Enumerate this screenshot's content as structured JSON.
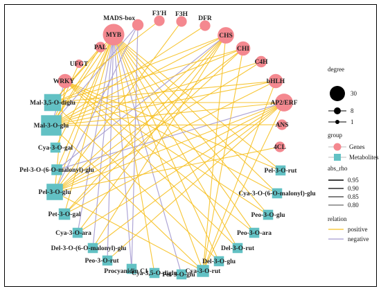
{
  "colors": {
    "gene": "#f4888f",
    "metabolite": "#62c1c4",
    "positive": "#f6c020",
    "negative": "#a59bd0"
  },
  "genes": [
    {
      "id": "MYB",
      "label": "MYB",
      "degree": 30
    },
    {
      "id": "MADS",
      "label": "MADS-box",
      "degree": 4
    },
    {
      "id": "F3pH",
      "label": "F3'H",
      "degree": 3
    },
    {
      "id": "F3H",
      "label": "F3H",
      "degree": 3
    },
    {
      "id": "DFR",
      "label": "DFR",
      "degree": 3
    },
    {
      "id": "CHS",
      "label": "CHS",
      "degree": 14
    },
    {
      "id": "CHI",
      "label": "CHI",
      "degree": 9
    },
    {
      "id": "C4H",
      "label": "C4H",
      "degree": 4
    },
    {
      "id": "bHLH",
      "label": "bHLH",
      "degree": 9
    },
    {
      "id": "AP2",
      "label": "AP2/ERF",
      "degree": 18
    },
    {
      "id": "ANS",
      "label": "ANS",
      "degree": 3
    },
    {
      "id": "4CL",
      "label": "4CL",
      "degree": 3
    },
    {
      "id": "PAL",
      "label": "PAL",
      "degree": 3
    },
    {
      "id": "UFGT",
      "label": "UFGT",
      "degree": 1
    },
    {
      "id": "WRKY",
      "label": "WRKY",
      "degree": 9
    }
  ],
  "metabolites": [
    {
      "id": "Mal35",
      "label": "Mal-3,5-O-diglu",
      "degree": 18
    },
    {
      "id": "Mal3glu",
      "label": "Mal-3-O-glu",
      "degree": 30
    },
    {
      "id": "Cya3gal",
      "label": "Cya-3-O-gal",
      "degree": 3
    },
    {
      "id": "Pel3mal",
      "label": "Pel-3-O-(6-O-malonyl)-glu",
      "degree": 4
    },
    {
      "id": "Pel3glu",
      "label": "Pel-3-O-glu",
      "degree": 16
    },
    {
      "id": "Pet3gal",
      "label": "Pet-3-O-gal",
      "degree": 5
    },
    {
      "id": "Cya3ara",
      "label": "Cya-3-O-ara",
      "degree": 3
    },
    {
      "id": "Del3mal",
      "label": "Del-3-O-(6-O-malonyl)-glu",
      "degree": 3
    },
    {
      "id": "Peo3rut",
      "label": "Peo-3-O-rut",
      "degree": 3
    },
    {
      "id": "ProcC1",
      "label": "Procyanidin C1",
      "degree": 3
    },
    {
      "id": "Cya35",
      "label": "Cya-3,5-O-diglu",
      "degree": 3
    },
    {
      "id": "Pet3glu",
      "label": "Pet-3-O-glu",
      "degree": 3
    },
    {
      "id": "Cya3rut",
      "label": "Cya-3-O-rut",
      "degree": 6
    },
    {
      "id": "Del3glu",
      "label": "Del-3-O-glu",
      "degree": 3
    },
    {
      "id": "Del3rut",
      "label": "Del-3-O-rut",
      "degree": 3
    },
    {
      "id": "Peo3ara",
      "label": "Peo-3-O-ara",
      "degree": 3
    },
    {
      "id": "Peo3glu",
      "label": "Peo-3-O-glu",
      "degree": 3
    },
    {
      "id": "Cya3mal",
      "label": "Cya-3-O-(6-O-malonyl)-glu",
      "degree": 3
    },
    {
      "id": "Pel3rut",
      "label": "Pel-3-O-rut",
      "degree": 3
    }
  ],
  "edges": [
    [
      "MYB",
      "Mal35",
      "positive"
    ],
    [
      "MYB",
      "Mal3glu",
      "positive"
    ],
    [
      "MYB",
      "Pel3glu",
      "positive"
    ],
    [
      "MYB",
      "Pet3gal",
      "positive"
    ],
    [
      "MYB",
      "Cya3rut",
      "positive"
    ],
    [
      "MYB",
      "Del3glu",
      "positive"
    ],
    [
      "MYB",
      "Del3rut",
      "positive"
    ],
    [
      "MYB",
      "Peo3ara",
      "positive"
    ],
    [
      "MYB",
      "Peo3glu",
      "positive"
    ],
    [
      "MYB",
      "Cya3mal",
      "positive"
    ],
    [
      "MYB",
      "Pel3rut",
      "positive"
    ],
    [
      "MYB",
      "Cya3ara",
      "negative"
    ],
    [
      "MYB",
      "Del3mal",
      "negative"
    ],
    [
      "MYB",
      "Peo3rut",
      "negative"
    ],
    [
      "MYB",
      "ProcC1",
      "negative"
    ],
    [
      "MYB",
      "Cya35",
      "positive"
    ],
    [
      "MYB",
      "Pet3glu",
      "negative"
    ],
    [
      "MYB",
      "Pel3mal",
      "positive"
    ],
    [
      "MYB",
      "Cya3gal",
      "positive"
    ],
    [
      "CHS",
      "Mal35",
      "positive"
    ],
    [
      "CHS",
      "Mal3glu",
      "positive"
    ],
    [
      "CHS",
      "Pel3glu",
      "positive"
    ],
    [
      "CHS",
      "Pet3gal",
      "positive"
    ],
    [
      "CHS",
      "Cya3ara",
      "positive"
    ],
    [
      "CHS",
      "Del3mal",
      "positive"
    ],
    [
      "CHS",
      "Cya3rut",
      "positive"
    ],
    [
      "CHS",
      "Pel3mal",
      "negative"
    ],
    [
      "CHI",
      "Mal3glu",
      "positive"
    ],
    [
      "CHI",
      "Pel3glu",
      "positive"
    ],
    [
      "CHI",
      "Mal35",
      "positive"
    ],
    [
      "CHI",
      "Pet3gal",
      "positive"
    ],
    [
      "CHI",
      "Cya3rut",
      "positive"
    ],
    [
      "AP2",
      "Mal3glu",
      "positive"
    ],
    [
      "AP2",
      "Mal35",
      "positive"
    ],
    [
      "AP2",
      "Pel3glu",
      "positive"
    ],
    [
      "AP2",
      "Pet3gal",
      "positive"
    ],
    [
      "AP2",
      "Cya3ara",
      "positive"
    ],
    [
      "AP2",
      "Del3mal",
      "positive"
    ],
    [
      "AP2",
      "Peo3rut",
      "positive"
    ],
    [
      "AP2",
      "Cya3rut",
      "positive"
    ],
    [
      "AP2",
      "Pel3mal",
      "negative"
    ],
    [
      "bHLH",
      "Mal3glu",
      "positive"
    ],
    [
      "bHLH",
      "Pel3glu",
      "positive"
    ],
    [
      "bHLH",
      "Mal35",
      "positive"
    ],
    [
      "bHLH",
      "Cya3rut",
      "positive"
    ],
    [
      "WRKY",
      "Mal3glu",
      "negative"
    ],
    [
      "WRKY",
      "Pel3glu",
      "positive"
    ],
    [
      "WRKY",
      "Del3rut",
      "positive"
    ],
    [
      "WRKY",
      "Peo3ara",
      "positive"
    ],
    [
      "WRKY",
      "Peo3glu",
      "positive"
    ],
    [
      "WRKY",
      "Cya3mal",
      "positive"
    ],
    [
      "WRKY",
      "Pel3rut",
      "positive"
    ],
    [
      "C4H",
      "Mal3glu",
      "positive"
    ],
    [
      "C4H",
      "Pel3glu",
      "positive"
    ],
    [
      "MADS",
      "Mal3glu",
      "negative"
    ],
    [
      "MADS",
      "Pel3glu",
      "negative"
    ],
    [
      "MADS",
      "ProcC1",
      "negative"
    ],
    [
      "PAL",
      "Mal3glu",
      "positive"
    ],
    [
      "PAL",
      "Mal35",
      "positive"
    ],
    [
      "UFGT",
      "Mal3glu",
      "positive"
    ],
    [
      "DFR",
      "Mal3glu",
      "positive"
    ],
    [
      "F3H",
      "Pel3glu",
      "positive"
    ],
    [
      "F3pH",
      "Mal35",
      "positive"
    ],
    [
      "ANS",
      "Mal3glu",
      "positive"
    ],
    [
      "4CL",
      "Pel3glu",
      "positive"
    ],
    [
      "Mal3glu",
      "Cya3rut",
      "positive"
    ],
    [
      "Pel3glu",
      "Cya3rut",
      "positive"
    ],
    [
      "Mal35",
      "Del3glu",
      "positive"
    ]
  ],
  "legend": {
    "degree_title": "degree",
    "degree_sizes": [
      "30",
      "8",
      "1"
    ],
    "group_title": "group",
    "group_items": [
      "Genes",
      "Metabolites"
    ],
    "rho_title": "abs_rho",
    "rho_values": [
      "0.95",
      "0.90",
      "0.85",
      "0.80"
    ],
    "relation_title": "relation",
    "relation_items": [
      "positive",
      "negative"
    ]
  }
}
